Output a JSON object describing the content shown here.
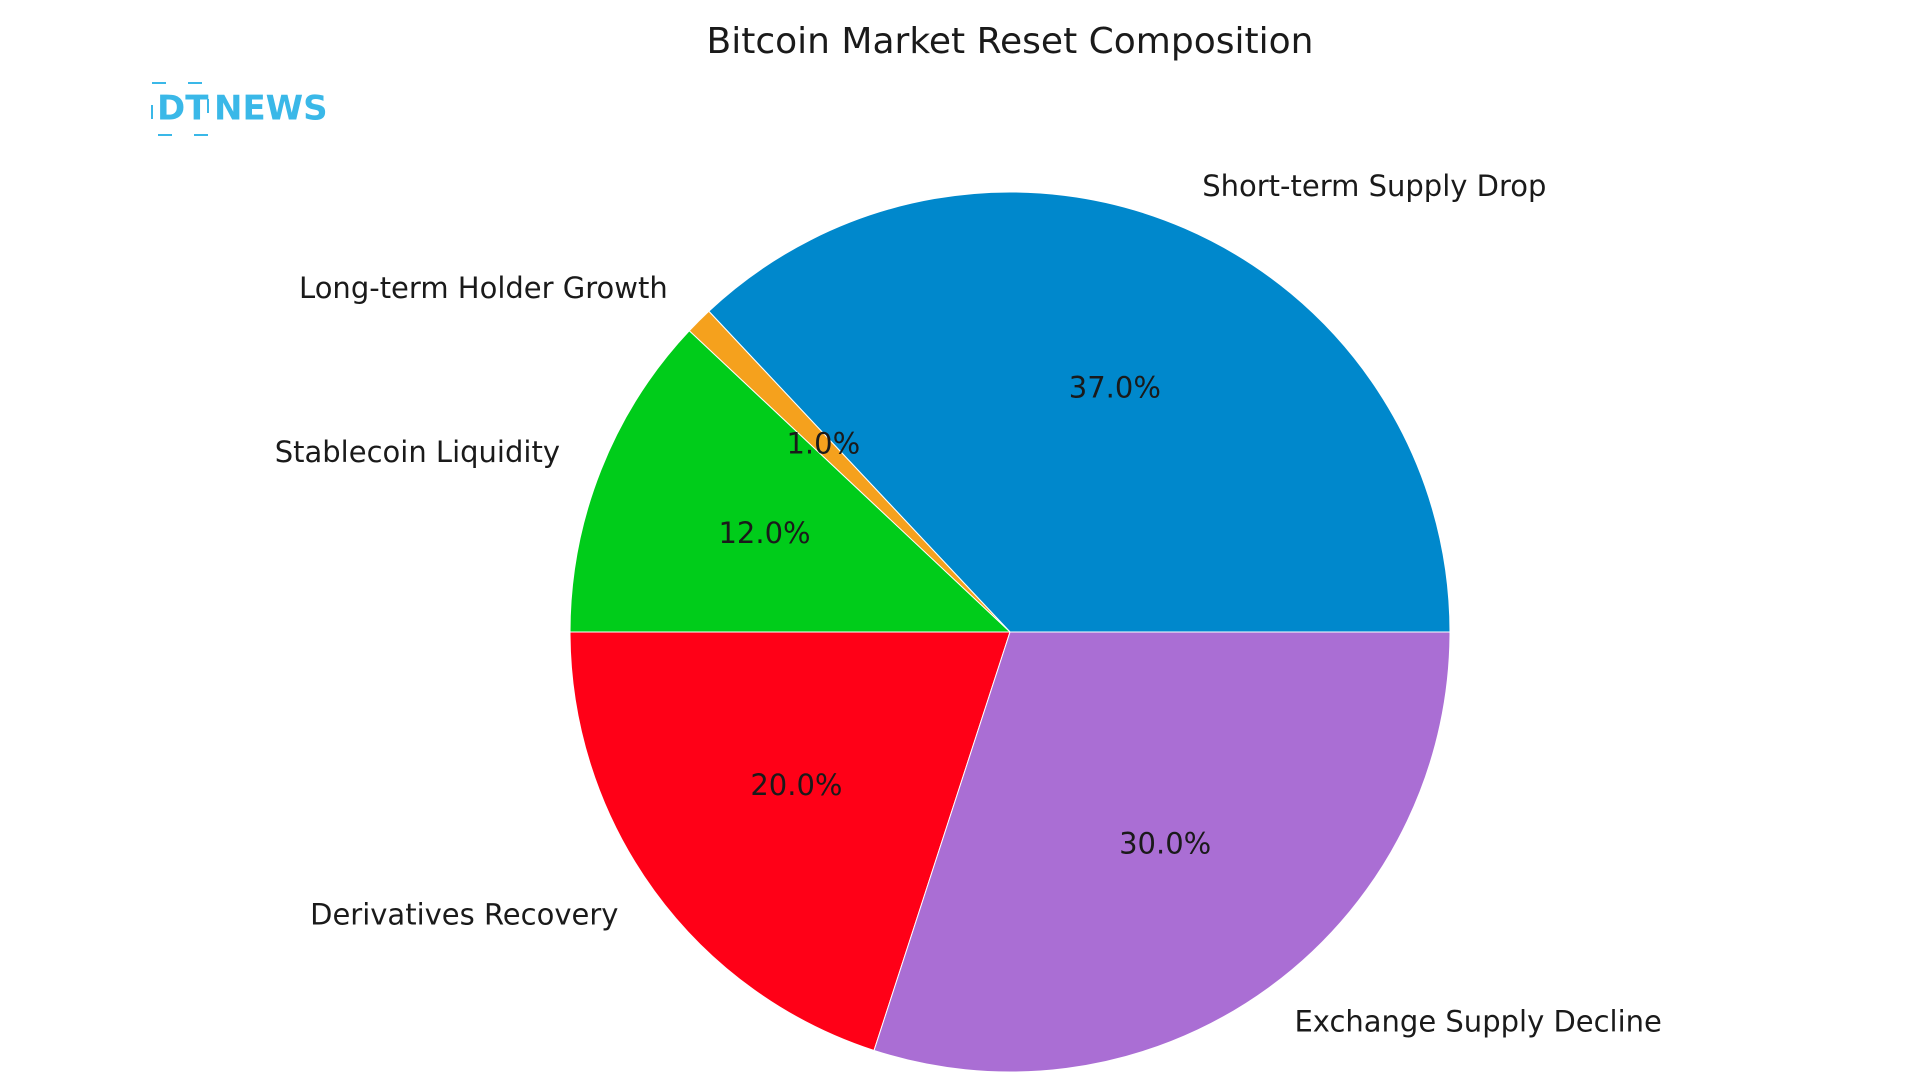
{
  "logo": {
    "mark": "DT",
    "text": "NEWS"
  },
  "chart_data": {
    "type": "pie",
    "title": "Bitcoin Market Reset Composition",
    "categories": [
      "Short-term Supply Drop",
      "Long-term Holder Growth",
      "Stablecoin Liquidity",
      "Derivatives Recovery",
      "Exchange Supply Decline"
    ],
    "values": [
      37,
      1,
      12,
      20,
      30
    ],
    "value_labels": [
      "37.0%",
      "1.0%",
      "12.0%",
      "20.0%",
      "30.0%"
    ],
    "colors": [
      "#0088cc",
      "#f5a11d",
      "#00cc1a",
      "#ff0017",
      "#aa6ed4"
    ]
  }
}
